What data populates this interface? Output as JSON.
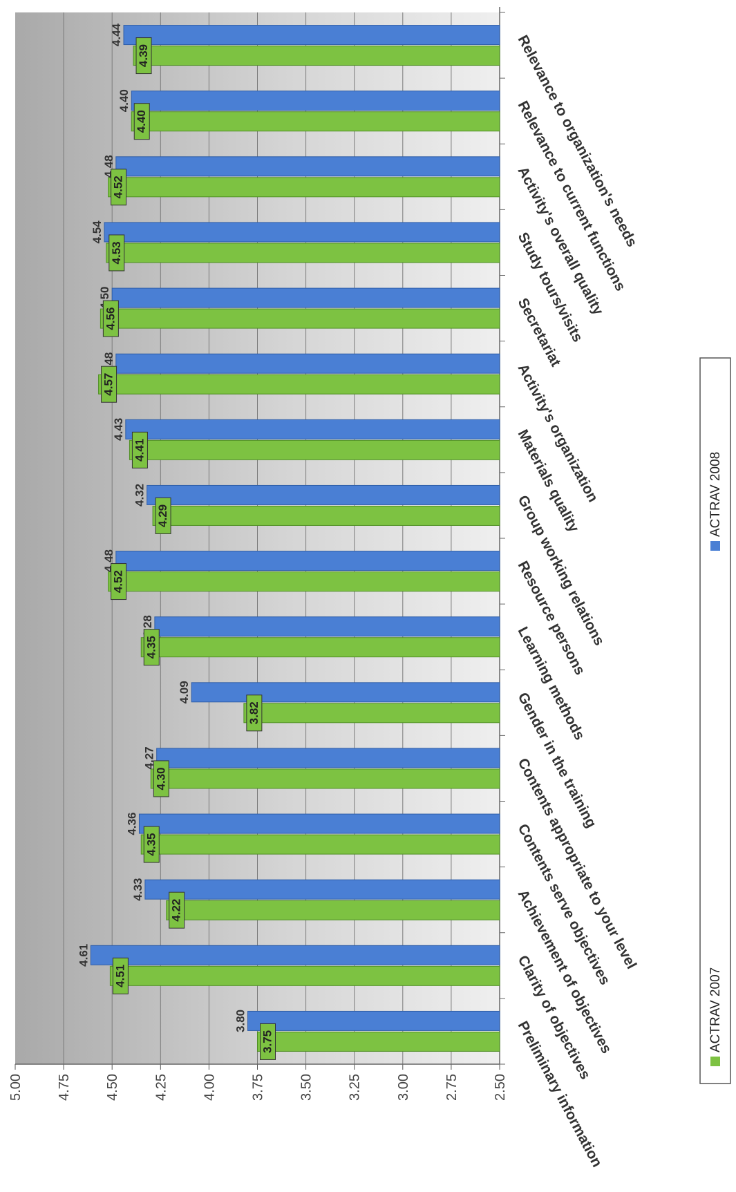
{
  "chart_data": {
    "type": "bar",
    "categories": [
      "Preliminary information",
      "Clarity of objectives",
      "Achievement of objectives",
      "Contents serve objectives",
      "Contents appropriate to your level",
      "Gender in the training",
      "Learning methods",
      "Resource persons",
      "Group working relations",
      "Materials quality",
      "Activity's organization",
      "Secretariat",
      "Study tours/visits",
      "Activity's overall quality",
      "Relevance to current functions",
      "Relevance to organization's needs"
    ],
    "series": [
      {
        "name": "ACTRAV 2007",
        "color": "#7dc242",
        "values": [
          3.75,
          4.51,
          4.22,
          4.35,
          4.3,
          3.82,
          4.35,
          4.52,
          4.29,
          4.41,
          4.57,
          4.56,
          4.53,
          4.52,
          4.4,
          4.39
        ],
        "labels": [
          "3.75",
          "4.51",
          "4.22",
          "4.35",
          "4.30",
          "3.82",
          "4.35",
          "4.52",
          "4.29",
          "4.41",
          "4.57",
          "4.56",
          "4.53",
          "4.52",
          "4.40",
          "4.39"
        ]
      },
      {
        "name": "ACTRAV 2008",
        "color": "#4a7fd4",
        "values": [
          3.8,
          4.61,
          4.33,
          4.36,
          4.27,
          4.09,
          4.28,
          4.48,
          4.32,
          4.43,
          4.48,
          4.5,
          4.54,
          4.48,
          4.4,
          4.44
        ],
        "labels": [
          "3.80",
          "4.61",
          "4.33",
          "4.36",
          "4.27",
          "4.09",
          "4.28",
          "4.48",
          "4.32",
          "4.43",
          "4.48",
          "4.50",
          "4.54",
          "4.48",
          "4.40",
          "4.44"
        ]
      }
    ],
    "ylim": [
      2.5,
      5.0
    ],
    "ticks": [
      "5.00",
      "4.75",
      "4.50",
      "4.25",
      "4.00",
      "3.75",
      "3.50",
      "3.25",
      "3.00",
      "2.75",
      "2.50"
    ],
    "grid": true,
    "legend_position": "bottom-right",
    "orientation": "rotated 90 degrees clockwise",
    "background": "#b8b8b8"
  }
}
